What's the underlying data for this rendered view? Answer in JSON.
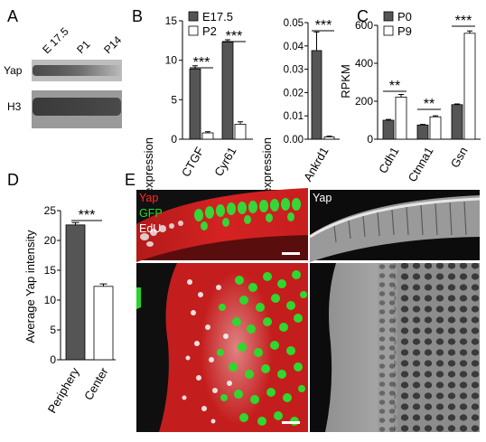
{
  "panels": {
    "A": {
      "letter": "A",
      "lanes": [
        "E 17.5",
        "P1",
        "P14"
      ],
      "bands": [
        "Yap",
        "H3"
      ]
    },
    "B": {
      "letter": "B",
      "legend": [
        {
          "label": "E17.5",
          "color": "#555555"
        },
        {
          "label": "P2",
          "color": "#ffffff"
        }
      ]
    },
    "C": {
      "letter": "C",
      "legend": [
        {
          "label": "P0",
          "color": "#555555"
        },
        {
          "label": "P9",
          "color": "#ffffff"
        }
      ]
    },
    "D": {
      "letter": "D"
    },
    "E": {
      "letter": "E",
      "channels": [
        {
          "label": "Yap",
          "color": "#ff2a2a"
        },
        {
          "label": "GFP",
          "color": "#22dd22"
        },
        {
          "label": "EdU",
          "color": "#ffffff"
        }
      ],
      "gray_label": "Yap",
      "colors": {
        "red": "#c81e1e",
        "green": "#2bd42b",
        "white": "#f2f2f2"
      }
    }
  },
  "chart_data": [
    {
      "id": "B1",
      "type": "bar",
      "ylabel": "% GAPDH expression",
      "ylim": [
        0,
        15
      ],
      "yticks": [
        "0",
        "5",
        "10",
        "15"
      ],
      "categories": [
        "CTGF",
        "Cyr61"
      ],
      "series": [
        {
          "name": "E17.5",
          "values": [
            8.9,
            12.3
          ],
          "errors": [
            0.4,
            0.3
          ],
          "color": "#555555"
        },
        {
          "name": "P2",
          "values": [
            0.8,
            1.9
          ],
          "errors": [
            0.15,
            0.3
          ],
          "color": "#ffffff"
        }
      ],
      "significance": [
        "***",
        "***"
      ]
    },
    {
      "id": "B2",
      "type": "bar",
      "ylabel": "% GAPDH expression",
      "ylim": [
        0,
        0.05
      ],
      "yticks": [
        "0.00",
        "0.01",
        "0.02",
        "0.03",
        "0.04",
        "0.05"
      ],
      "categories": [
        "Ankrd1"
      ],
      "series": [
        {
          "name": "E17.5",
          "values": [
            0.038
          ],
          "errors": [
            0.008
          ],
          "color": "#555555"
        },
        {
          "name": "P2",
          "values": [
            0.001
          ],
          "errors": [
            0.0003
          ],
          "color": "#ffffff"
        }
      ],
      "significance": [
        "***"
      ]
    },
    {
      "id": "C",
      "type": "bar",
      "ylabel": "RPKM",
      "ylim": [
        0,
        600
      ],
      "yticks": [
        "0",
        "200",
        "400",
        "600"
      ],
      "categories": [
        "Cdh1",
        "Ctnna1",
        "Gsn"
      ],
      "series": [
        {
          "name": "P0",
          "values": [
            100,
            75,
            182
          ],
          "errors": [
            4,
            3,
            4
          ],
          "color": "#555555"
        },
        {
          "name": "P9",
          "values": [
            222,
            118,
            558
          ],
          "errors": [
            14,
            5,
            12
          ],
          "color": "#ffffff"
        }
      ],
      "significance": [
        "**",
        "**",
        "***"
      ]
    },
    {
      "id": "D",
      "type": "bar",
      "ylabel": "Average Yap intensity",
      "ylim": [
        0,
        25
      ],
      "yticks": [
        "0",
        "5",
        "10",
        "15",
        "20",
        "25"
      ],
      "categories": [
        "Periphery",
        "Center"
      ],
      "series": [
        {
          "values": [
            22.6,
            12.3
          ],
          "errors": [
            0.4,
            0.4
          ],
          "colors": [
            "#555555",
            "#ffffff"
          ]
        }
      ],
      "significance": [
        "***"
      ]
    }
  ]
}
